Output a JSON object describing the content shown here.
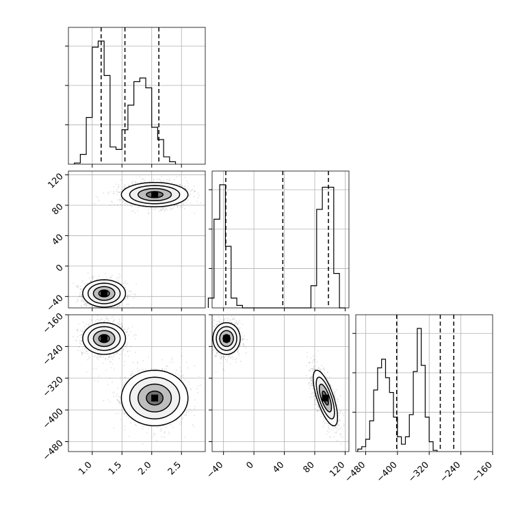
{
  "chart_data": {
    "type": "corner",
    "parameters": [
      {
        "label": "",
        "range": [
          0.6,
          2.9
        ],
        "ticks": [
          "1.0",
          "1.5",
          "2.0",
          "2.5"
        ],
        "tick_values": [
          1.0,
          1.5,
          2.0,
          2.5
        ]
      },
      {
        "label": "",
        "range": [
          -55,
          125
        ],
        "ticks": [
          "−40",
          "0",
          "40",
          "80",
          "120"
        ],
        "tick_values": [
          -40,
          0,
          40,
          80,
          120
        ]
      },
      {
        "label": "",
        "range": [
          -505,
          -160
        ],
        "ticks": [
          "−480",
          "−400",
          "−320",
          "−240",
          "−160"
        ],
        "tick_values": [
          -480,
          -400,
          -320,
          -240,
          -160
        ]
      }
    ],
    "quantiles": [
      [
        1.15,
        1.55,
        2.12
      ],
      [
        -37,
        38,
        98
      ],
      [
        -402,
        -292,
        -258
      ]
    ],
    "histograms": [
      {
        "edges_start": 0.7,
        "bin_width": 0.1,
        "counts": [
          1,
          8,
          38,
          95,
          100,
          72,
          14,
          12,
          28,
          48,
          67,
          70,
          62,
          30,
          20,
          6,
          2
        ]
      },
      {
        "edges_start": -60,
        "bin_width": 7.5,
        "counts": [
          8,
          72,
          100,
          50,
          8,
          2,
          0,
          0,
          0,
          0,
          0,
          0,
          0,
          0,
          0,
          0,
          0,
          0,
          18,
          80,
          98,
          98,
          28,
          0
        ]
      },
      {
        "edges_start": -500,
        "bin_width": 10,
        "counts": [
          2,
          4,
          10,
          25,
          50,
          68,
          75,
          60,
          48,
          28,
          12,
          6,
          12,
          30,
          65,
          100,
          70,
          28,
          8,
          1
        ]
      }
    ],
    "clusters": [
      {
        "mean": [
          1.2,
          -36,
          -220
        ],
        "sd": [
          0.18,
          9,
          20
        ],
        "weight": 0.5
      },
      {
        "mean": [
          2.05,
          94,
          -370
        ],
        "sd": [
          0.28,
          8,
          35
        ],
        "rho_yz": -0.7,
        "weight": 0.5
      }
    ],
    "grid": true
  }
}
